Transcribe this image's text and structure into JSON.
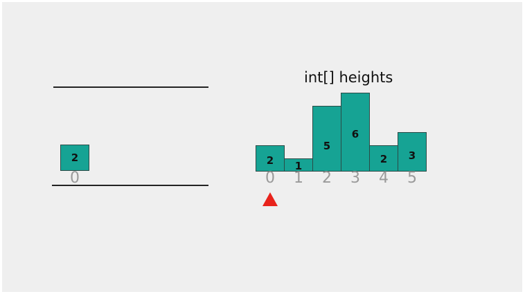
{
  "title": "int[] heights",
  "heights": [
    2,
    1,
    5,
    6,
    2,
    3
  ],
  "stack": {
    "values": [
      2
    ],
    "indices": [
      "0"
    ]
  },
  "pointer_index": 0,
  "colors": {
    "bar_fill": "#16a394",
    "pointer": "#e8231c",
    "index_text": "#9a9a9a"
  }
}
